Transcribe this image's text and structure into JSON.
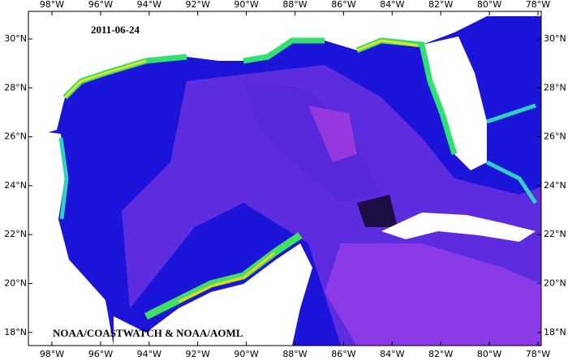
{
  "map": {
    "date": "2011-06-24",
    "credit": "NOAA/COASTWATCH & NOAA/AOML",
    "longitude_labels": [
      "98°W",
      "96°W",
      "94°W",
      "92°W",
      "90°W",
      "88°W",
      "86°W",
      "84°W",
      "82°W",
      "80°W",
      "78°W"
    ],
    "latitude_labels": [
      "30°N",
      "28°N",
      "26°N",
      "24°N",
      "22°N",
      "20°N",
      "18°N"
    ]
  }
}
